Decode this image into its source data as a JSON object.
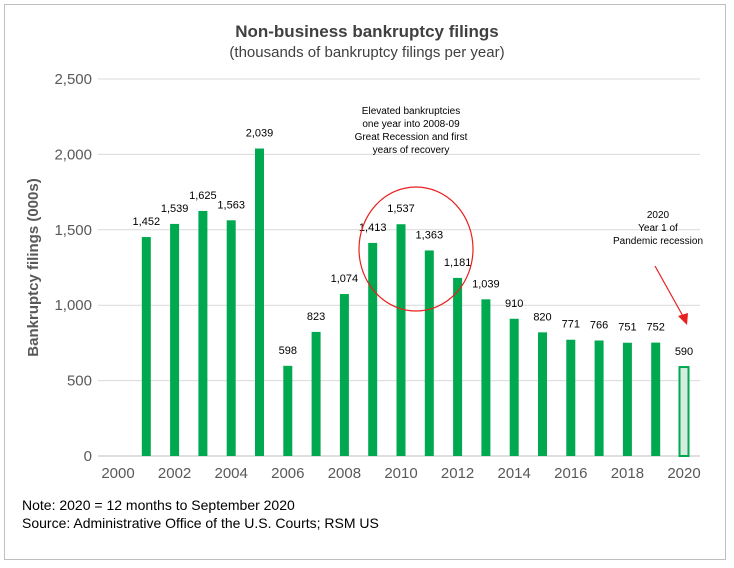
{
  "chart_data": {
    "type": "bar",
    "title": "Non-business bankruptcy filings",
    "subtitle": "(thousands of bankruptcy filings per year)",
    "ylabel": "Bankruptcy filings (000s)",
    "xlabel": "",
    "ylim": [
      0,
      2500
    ],
    "yticks": [
      "0",
      "500",
      "1,000",
      "1,500",
      "2,000",
      "2,500"
    ],
    "xlim": [
      2000,
      2020
    ],
    "xticks": [
      "2000",
      "2002",
      "2004",
      "2006",
      "2008",
      "2010",
      "2012",
      "2014",
      "2016",
      "2018",
      "2020"
    ],
    "grid": true,
    "x": [
      2001,
      2002,
      2003,
      2004,
      2005,
      2006,
      2007,
      2008,
      2009,
      2010,
      2011,
      2012,
      2013,
      2014,
      2015,
      2016,
      2017,
      2018,
      2019,
      2020
    ],
    "values": [
      1452,
      1539,
      1625,
      1563,
      2039,
      598,
      823,
      1074,
      1413,
      1537,
      1363,
      1181,
      1039,
      910,
      820,
      771,
      766,
      751,
      752,
      590
    ],
    "labels": [
      "1,452",
      "1,539",
      "1,625",
      "1,563",
      "2,039",
      "598",
      "823",
      "1,074",
      "1,413",
      "1,537",
      "1,363",
      "1,181",
      "1,039",
      "910",
      "820",
      "771",
      "766",
      "751",
      "752",
      "590"
    ],
    "highlight_index": 19,
    "annotations": [
      {
        "lines": [
          "Elevated bankruptcies",
          "one year into 2008-09",
          "Great Recession and first",
          "years of recovery"
        ]
      },
      {
        "lines": [
          "2020",
          "Year 1 of",
          "Pandemic recession"
        ]
      }
    ],
    "colors": {
      "bar": "#00a94f",
      "highlight_fill": "#d6ece0",
      "circle": "#e8201e",
      "arrow": "#e8201e",
      "grid": "#d9d9d9",
      "axis_text": "#595959"
    }
  },
  "notes": {
    "line1": "Note: 2020 = 12 months to September 2020",
    "line2": "Source:  Administrative Office of the U.S. Courts; RSM US"
  }
}
